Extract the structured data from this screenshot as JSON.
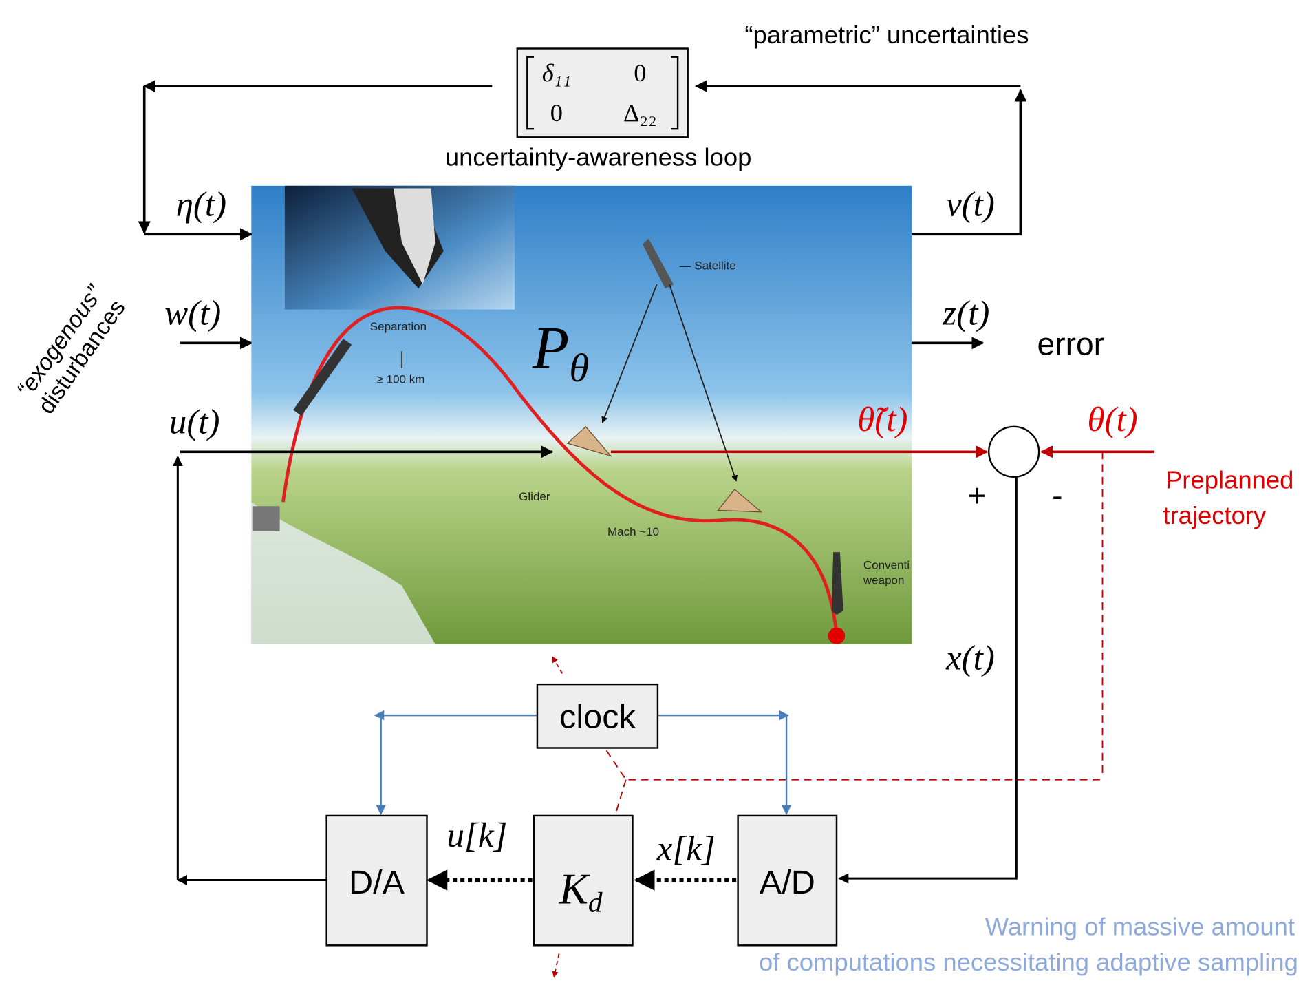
{
  "annotations": {
    "parametric": "“parametric” uncertainties",
    "loop": "uncertainty-awareness loop",
    "exogenous": [
      "“exogenous”",
      "disturbances"
    ],
    "error": "error",
    "preplanned": [
      "Preplanned",
      "trajectory"
    ],
    "warning": [
      "Warning of massive amount",
      "of computations necessitating adaptive sampling"
    ]
  },
  "matrix": [
    [
      "δ₁₁",
      "0"
    ],
    [
      "0",
      "Δ₂₂"
    ]
  ],
  "plant": {
    "symbol": "P",
    "subscript": "θ"
  },
  "signals": {
    "eta": "η(t)",
    "v": "v(t)",
    "w": "w(t)",
    "z": "z(t)",
    "u": "u(t)",
    "theta_tilde": "θ̃(t)",
    "theta": "θ(t)",
    "x": "x(t)",
    "uk": "u[k]",
    "xk": "x[k]"
  },
  "signs": {
    "plus": "+",
    "minus": "-"
  },
  "blocks": {
    "clock": "clock",
    "da": "D/A",
    "kd": {
      "symbol": "K",
      "subscript": "d"
    },
    "ad": "A/D"
  },
  "image_labels": {
    "separation": "Separation",
    "altitude": "≥ 100 km",
    "satellite": "— Satellite",
    "glider": "Glider",
    "mach": "Mach ~10",
    "weapon": [
      "Conventi",
      "weapon"
    ]
  }
}
